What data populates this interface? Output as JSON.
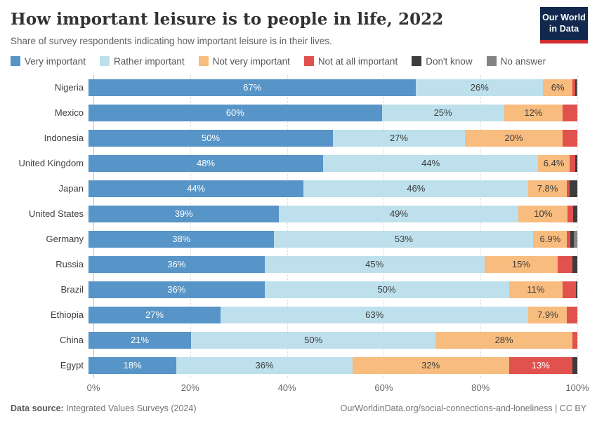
{
  "header": {
    "title": "How important leisure is to people in life, 2022",
    "subtitle": "Share of survey respondents indicating how important leisure is in their lives.",
    "logo": {
      "line1": "Our World",
      "line2": "in Data"
    }
  },
  "legend": {
    "items": [
      {
        "label": "Very important",
        "color": "#5794c7",
        "label_color": "#ffffff"
      },
      {
        "label": "Rather important",
        "color": "#bde0ec",
        "label_color": "#3c3c3c"
      },
      {
        "label": "Not very important",
        "color": "#f8bc7e",
        "label_color": "#3c3c3c"
      },
      {
        "label": "Not at all important",
        "color": "#e1514e",
        "label_color": "#ffffff"
      },
      {
        "label": "Don't know",
        "color": "#3d3d3d",
        "label_color": "#ffffff"
      },
      {
        "label": "No answer",
        "color": "#848484",
        "label_color": "#ffffff"
      }
    ]
  },
  "chart_data": {
    "type": "bar",
    "variant": "horizontal-stacked",
    "unit": "%",
    "title": "How important leisure is to people in life, 2022",
    "xlabel": "",
    "ylabel": "",
    "x_axis": {
      "ticks": [
        "0%",
        "20%",
        "40%",
        "60%",
        "80%",
        "100%"
      ],
      "range": [
        0,
        100
      ],
      "grid": "dotted-vertical"
    },
    "legend_position": "top",
    "series_names": [
      "Very important",
      "Rather important",
      "Not very important",
      "Not at all important",
      "Don't know",
      "No answer"
    ],
    "rows": [
      {
        "country": "Nigeria",
        "values": [
          67,
          26,
          6,
          0.6,
          0.2,
          0.2
        ],
        "labels": [
          "67%",
          "26%",
          "6%",
          "",
          "",
          ""
        ]
      },
      {
        "country": "Mexico",
        "values": [
          60,
          25,
          12,
          3,
          0,
          0
        ],
        "labels": [
          "60%",
          "25%",
          "12%",
          "",
          "",
          ""
        ]
      },
      {
        "country": "Indonesia",
        "values": [
          50,
          27,
          20,
          3,
          0,
          0
        ],
        "labels": [
          "50%",
          "27%",
          "20%",
          "",
          "",
          ""
        ]
      },
      {
        "country": "United Kingdom",
        "values": [
          48,
          44,
          6.4,
          1.2,
          0.4,
          0
        ],
        "labels": [
          "48%",
          "44%",
          "6.4%",
          "",
          "",
          ""
        ]
      },
      {
        "country": "Japan",
        "values": [
          44,
          46,
          7.8,
          0.6,
          1.6,
          0
        ],
        "labels": [
          "44%",
          "46%",
          "7.8%",
          "",
          "",
          ""
        ]
      },
      {
        "country": "United States",
        "values": [
          39,
          49,
          10,
          1.2,
          0.8,
          0
        ],
        "labels": [
          "39%",
          "49%",
          "10%",
          "",
          "",
          ""
        ]
      },
      {
        "country": "Germany",
        "values": [
          38,
          53,
          6.9,
          0.6,
          0.8,
          0.7
        ],
        "labels": [
          "38%",
          "53%",
          "6.9%",
          "",
          "",
          ""
        ]
      },
      {
        "country": "Russia",
        "values": [
          36,
          45,
          15,
          3,
          1,
          0
        ],
        "labels": [
          "36%",
          "45%",
          "15%",
          "",
          "",
          ""
        ]
      },
      {
        "country": "Brazil",
        "values": [
          36,
          50,
          11,
          2.7,
          0.3,
          0
        ],
        "labels": [
          "36%",
          "50%",
          "11%",
          "",
          "",
          ""
        ]
      },
      {
        "country": "Ethiopia",
        "values": [
          27,
          63,
          7.9,
          2.1,
          0,
          0
        ],
        "labels": [
          "27%",
          "63%",
          "7.9%",
          "",
          "",
          ""
        ]
      },
      {
        "country": "China",
        "values": [
          21,
          50,
          28,
          1,
          0,
          0
        ],
        "labels": [
          "21%",
          "50%",
          "28%",
          "",
          "",
          ""
        ]
      },
      {
        "country": "Egypt",
        "values": [
          18,
          36,
          32,
          13,
          1,
          0
        ],
        "labels": [
          "18%",
          "36%",
          "32%",
          "13%",
          "",
          ""
        ]
      }
    ]
  },
  "footer": {
    "source_label": "Data source:",
    "source_text": " Integrated Values Surveys (2024)",
    "link_text": "OurWorldinData.org/social-connections-and-loneliness | CC BY"
  }
}
